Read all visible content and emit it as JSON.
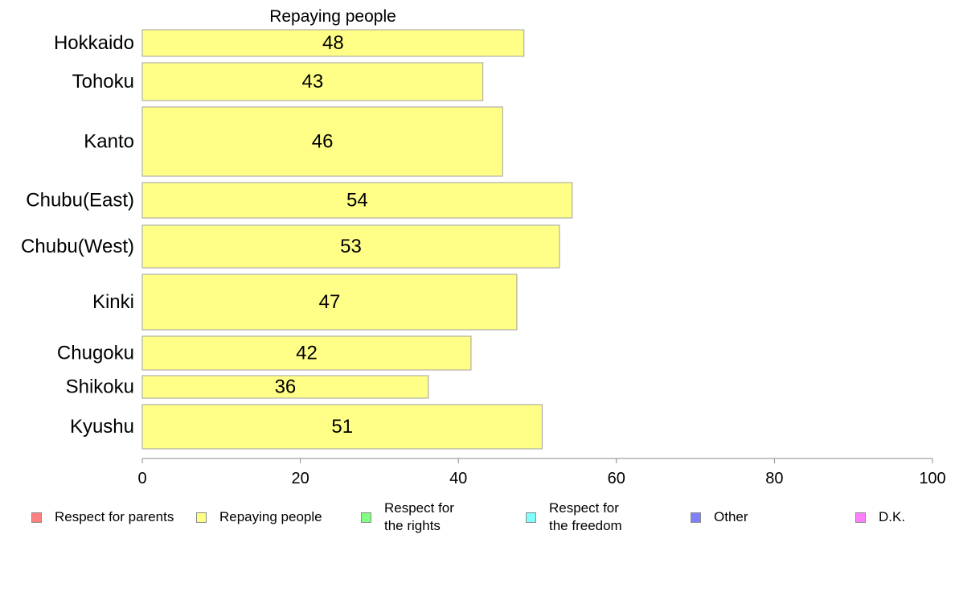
{
  "chart_data": {
    "type": "bar",
    "orientation": "horizontal",
    "title": "Repaying people",
    "categories": [
      "Hokkaido",
      "Tohoku",
      "Kanto",
      "Chubu(East)",
      "Chubu(West)",
      "Kinki",
      "Chugoku",
      "Shikoku",
      "Kyushu"
    ],
    "values": [
      48.3,
      43.1,
      45.6,
      54.4,
      52.8,
      47.4,
      41.6,
      36.2,
      50.6
    ],
    "value_labels": [
      "48",
      "43",
      "46",
      "54",
      "53",
      "47",
      "42",
      "36",
      "51"
    ],
    "xlim": [
      0,
      100
    ],
    "xticks": [
      "0",
      "20",
      "40",
      "60",
      "80",
      "100"
    ],
    "bar_color": "#ffff88",
    "bar_edge_color": "#a0a0a0",
    "grid": false,
    "legend_position": "bottom",
    "legend": [
      {
        "label": "Respect for parents",
        "color": "#ff8080"
      },
      {
        "label": "Repaying people",
        "color": "#ffff80"
      },
      {
        "label": "Respect for\nthe rights",
        "color": "#80ff80"
      },
      {
        "label": "Respect for\nthe freedom",
        "color": "#80ffff"
      },
      {
        "label": "Other",
        "color": "#8080ff"
      },
      {
        "label": "D.K.",
        "color": "#ff80ff"
      }
    ]
  }
}
